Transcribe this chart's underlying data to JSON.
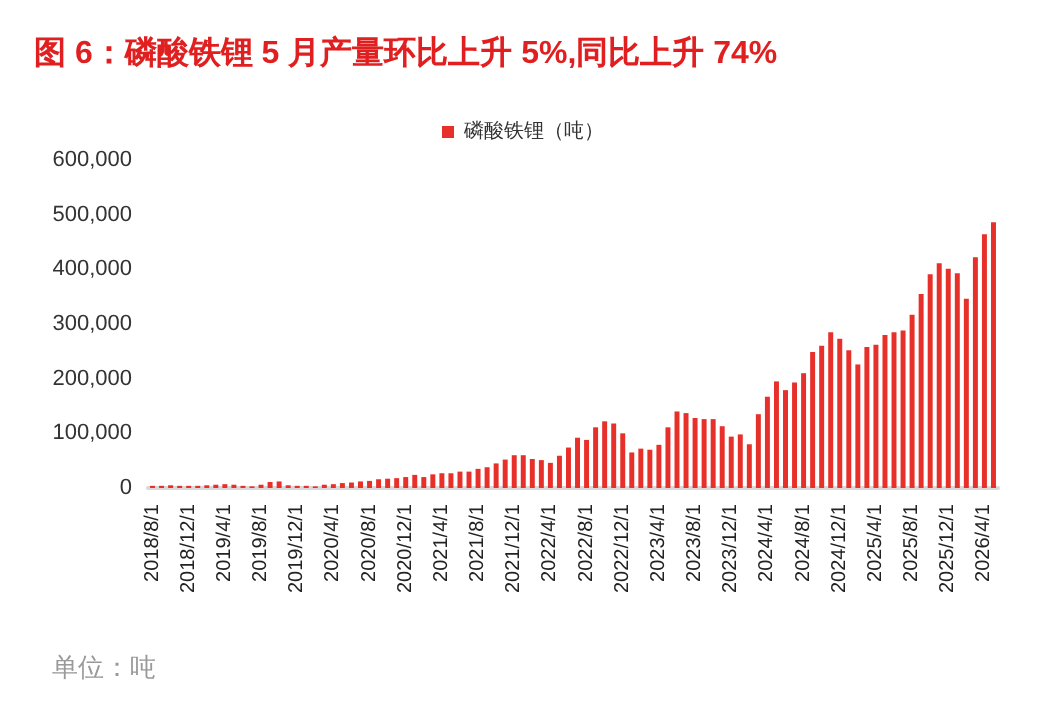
{
  "chart_data": {
    "type": "bar",
    "title": "图 6：磷酸铁锂 5 月产量环比上升 5%,同比上升 74%",
    "categories": [
      "2018/8/1",
      null,
      null,
      null,
      "2018/12/1",
      null,
      null,
      null,
      "2019/4/1",
      null,
      null,
      null,
      "2019/8/1",
      null,
      null,
      null,
      "2019/12/1",
      null,
      null,
      null,
      "2020/4/1",
      null,
      null,
      null,
      "2020/8/1",
      null,
      null,
      null,
      "2020/12/1",
      null,
      null,
      null,
      "2021/4/1",
      null,
      null,
      null,
      "2021/8/1",
      null,
      null,
      null,
      "2021/12/1",
      null,
      null,
      null,
      "2022/4/1",
      null,
      null,
      null,
      "2022/8/1",
      null,
      null,
      null,
      "2022/12/1",
      null,
      null,
      null,
      "2023/4/1",
      null,
      null,
      null,
      "2023/8/1",
      null,
      null,
      null,
      "2023/12/1",
      null,
      null,
      null,
      "2024/4/1",
      null,
      null,
      null,
      "2024/8/1",
      null,
      null,
      null,
      "2024/12/1",
      null,
      null,
      null,
      "2025/4/1",
      null,
      null,
      null,
      "2025/8/1",
      null,
      null,
      null,
      "2025/12/1",
      null,
      null,
      null,
      "2026/4/1",
      null
    ],
    "series": [
      {
        "name": "磷酸铁锂（吨）",
        "color": "#e8302a",
        "values": [
          4000,
          4000,
          5000,
          4000,
          4000,
          4000,
          5000,
          6000,
          7000,
          6000,
          4000,
          3000,
          6000,
          11000,
          12000,
          5000,
          4000,
          4000,
          3000,
          6000,
          7000,
          9000,
          10000,
          12000,
          13000,
          16000,
          17000,
          18000,
          20000,
          24000,
          20000,
          25000,
          27000,
          27000,
          30000,
          30000,
          35000,
          38000,
          45000,
          52000,
          60000,
          60000,
          53000,
          51000,
          46000,
          59000,
          74000,
          92000,
          88000,
          111000,
          122000,
          118000,
          100000,
          65000,
          72000,
          70000,
          79000,
          111000,
          140000,
          137000,
          128000,
          126000,
          126000,
          113000,
          94000,
          98000,
          80000,
          135000,
          167000,
          195000,
          179000,
          193000,
          210000,
          249000,
          260000,
          285000,
          273000,
          252000,
          226000,
          258000,
          262000,
          280000,
          285000,
          288000,
          317000,
          355000,
          391000,
          411000,
          401000,
          393000,
          346000,
          422000,
          464000,
          486000
        ]
      }
    ],
    "ylim": [
      0,
      600000
    ],
    "yticks": [
      0,
      {
        "value": 100000,
        "label": "100,000"
      },
      {
        "value": 200000,
        "label": "200,000"
      },
      {
        "value": 300000,
        "label": "300,000"
      },
      {
        "value": 400000,
        "label": "400,000"
      },
      {
        "value": 500000,
        "label": "500,000"
      },
      {
        "value": 600000,
        "label": "600,000"
      }
    ],
    "grid": false,
    "legend": "top",
    "annotations": [
      "单位：吨"
    ]
  }
}
